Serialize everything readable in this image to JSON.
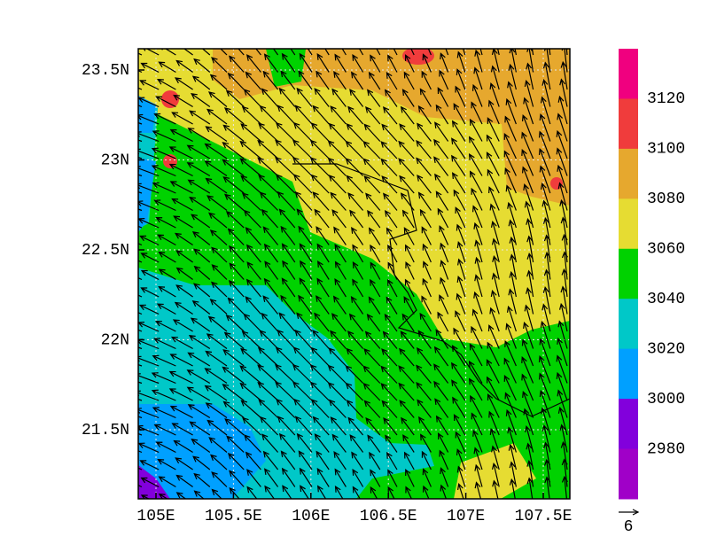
{
  "map": {
    "lat_labels": [
      "23.5N",
      "23N",
      "22.5N",
      "22N",
      "21.5N"
    ],
    "lon_labels": [
      "105E",
      "105.5E",
      "106E",
      "106.5E",
      "107E",
      "107.5E"
    ],
    "colorbar": {
      "labels": [
        "3120",
        "3100",
        "3080",
        "3060",
        "3040",
        "3020",
        "3000",
        "2980"
      ],
      "colors": [
        "#f0007f",
        "#f03c3c",
        "#e6a82e",
        "#e6dc32",
        "#00d200",
        "#00c8c8",
        "#00a0ff",
        "#8200dc",
        "#a000c8"
      ]
    },
    "vector_reference": "6"
  }
}
